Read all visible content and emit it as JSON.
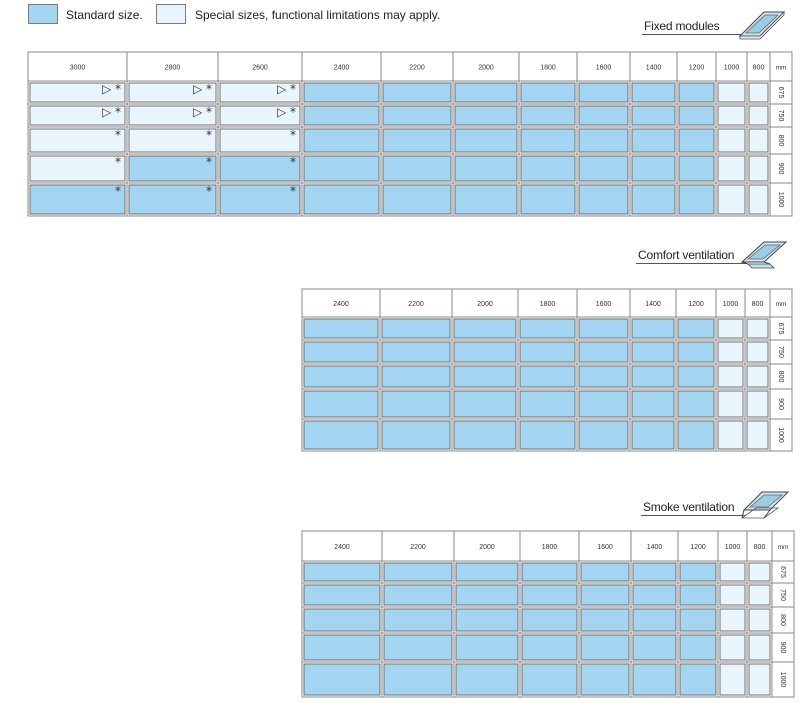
{
  "legend": {
    "standard_label": "Standard size.",
    "special_label": "Special sizes, functional limitations may apply.",
    "standard_color": "#a3d4f2",
    "special_color": "#e9f5fd"
  },
  "unit_label": "mm",
  "sections": [
    {
      "id": "fixed",
      "title": "Fixed modules",
      "icon": "fixed-module-icon",
      "widths": [
        "3000",
        "2800",
        "2600",
        "2400",
        "2200",
        "2000",
        "1800",
        "1600",
        "1400",
        "1200",
        "1000",
        "800"
      ],
      "heights": [
        "675",
        "750",
        "800",
        "900",
        "1000"
      ],
      "cells": [
        [
          "special",
          "special",
          "special",
          "standard",
          "standard",
          "standard",
          "standard",
          "standard",
          "standard",
          "standard",
          "special",
          "special"
        ],
        [
          "special",
          "special",
          "special",
          "standard",
          "standard",
          "standard",
          "standard",
          "standard",
          "standard",
          "standard",
          "special",
          "special"
        ],
        [
          "special",
          "special",
          "special",
          "standard",
          "standard",
          "standard",
          "standard",
          "standard",
          "standard",
          "standard",
          "special",
          "special"
        ],
        [
          "special",
          "standard",
          "standard",
          "standard",
          "standard",
          "standard",
          "standard",
          "standard",
          "standard",
          "standard",
          "special",
          "special"
        ],
        [
          "standard",
          "standard",
          "standard",
          "standard",
          "standard",
          "standard",
          "standard",
          "standard",
          "standard",
          "standard",
          "special",
          "special"
        ]
      ],
      "marks": [
        [
          "▷ *",
          "▷ *",
          "▷ *",
          "",
          "",
          "",
          "",
          "",
          "",
          "",
          "",
          ""
        ],
        [
          "▷ *",
          "▷ *",
          "▷ *",
          "",
          "",
          "",
          "",
          "",
          "",
          "",
          "",
          ""
        ],
        [
          "*",
          "*",
          "*",
          "",
          "",
          "",
          "",
          "",
          "",
          "",
          "",
          ""
        ],
        [
          "*",
          "*",
          "*",
          "",
          "",
          "",
          "",
          "",
          "",
          "",
          "",
          ""
        ],
        [
          "*",
          "*",
          "*",
          "",
          "",
          "",
          "",
          "",
          "",
          "",
          "",
          ""
        ]
      ]
    },
    {
      "id": "comfort",
      "title": "Comfort ventilation",
      "icon": "comfort-ventilation-icon",
      "widths": [
        "2400",
        "2200",
        "2000",
        "1800",
        "1600",
        "1400",
        "1200",
        "1000",
        "800"
      ],
      "heights": [
        "675",
        "750",
        "800",
        "900",
        "1000"
      ],
      "cells": [
        [
          "standard",
          "standard",
          "standard",
          "standard",
          "standard",
          "standard",
          "standard",
          "special",
          "special"
        ],
        [
          "standard",
          "standard",
          "standard",
          "standard",
          "standard",
          "standard",
          "standard",
          "special",
          "special"
        ],
        [
          "standard",
          "standard",
          "standard",
          "standard",
          "standard",
          "standard",
          "standard",
          "special",
          "special"
        ],
        [
          "standard",
          "standard",
          "standard",
          "standard",
          "standard",
          "standard",
          "standard",
          "special",
          "special"
        ],
        [
          "standard",
          "standard",
          "standard",
          "standard",
          "standard",
          "standard",
          "standard",
          "special",
          "special"
        ]
      ]
    },
    {
      "id": "smoke",
      "title": "Smoke ventilation",
      "icon": "smoke-ventilation-icon",
      "widths": [
        "2400",
        "2200",
        "2000",
        "1800",
        "1600",
        "1400",
        "1200",
        "1000",
        "800"
      ],
      "heights": [
        "675",
        "750",
        "800",
        "900",
        "1000"
      ],
      "cells": [
        [
          "standard",
          "standard",
          "standard",
          "standard",
          "standard",
          "standard",
          "standard",
          "special",
          "special"
        ],
        [
          "standard",
          "standard",
          "standard",
          "standard",
          "standard",
          "standard",
          "standard",
          "special",
          "special"
        ],
        [
          "standard",
          "standard",
          "standard",
          "standard",
          "standard",
          "standard",
          "standard",
          "special",
          "special"
        ],
        [
          "standard",
          "standard",
          "standard",
          "standard",
          "standard",
          "standard",
          "standard",
          "special",
          "special"
        ],
        [
          "standard",
          "standard",
          "standard",
          "standard",
          "standard",
          "standard",
          "standard",
          "special",
          "special"
        ]
      ]
    }
  ]
}
